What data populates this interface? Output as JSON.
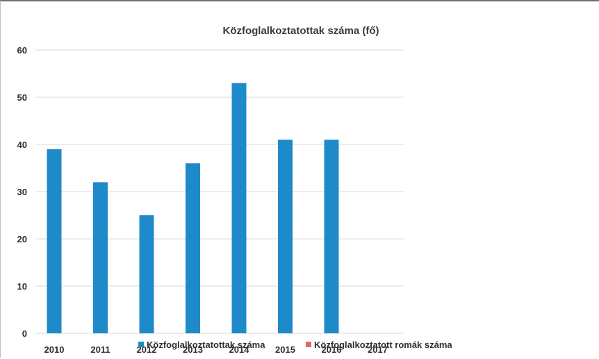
{
  "chart_data": {
    "type": "bar",
    "title": "Közfoglalkoztatottak száma (fő)",
    "categories": [
      "2010",
      "2011",
      "2012",
      "2013",
      "2014",
      "2015",
      "2016",
      "2017"
    ],
    "series": [
      {
        "name": "Közfoglalkoztatottak száma",
        "color": "#1f8ac9",
        "values": [
          39,
          32,
          25,
          36,
          53,
          41,
          41,
          null
        ]
      },
      {
        "name": "Közfoglalkoztatott romák száma",
        "color": "#e06b6b",
        "values": [
          null,
          null,
          null,
          null,
          null,
          null,
          null,
          null
        ]
      }
    ],
    "ylim": [
      0,
      60
    ],
    "yticks": [
      0,
      10,
      20,
      30,
      40,
      50,
      60
    ],
    "grid": true,
    "legend": "bottom"
  }
}
